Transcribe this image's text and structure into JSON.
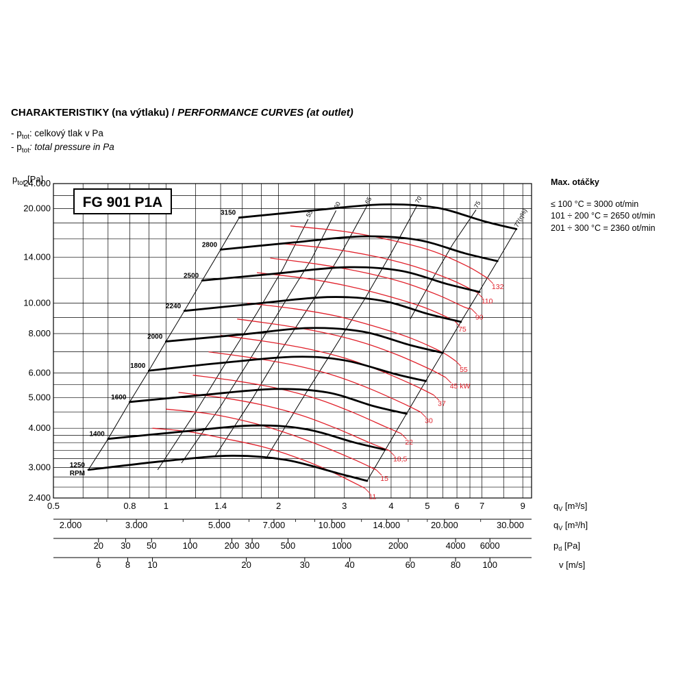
{
  "header": {
    "title_cz": "CHARAKTERISTIKY (na výtlaku) / ",
    "title_en": "PERFORMANCE CURVES (at outlet)",
    "legend1_prefix": "- p",
    "legend1_sub": "tot",
    "legend1_text": ": celkový tlak v Pa",
    "legend2_prefix": "- p",
    "legend2_sub": "tot",
    "legend2_text": ": total pressure in Pa"
  },
  "max_speed": {
    "title": "Max. otáčky",
    "lines": [
      "≤ 100 °C = 3000 ot/min",
      "101 ÷ 200 °C = 2650 ot/min",
      "201 ÷ 300 °C = 2360 ot/min"
    ]
  },
  "colors": {
    "power_curves": "#e0202a",
    "grid": "#000000",
    "curves": "#000000"
  },
  "chart_data": {
    "type": "line",
    "model": "FG 901 P1A",
    "y_scale": "log",
    "x_scale": "log",
    "ylabel_main": "p",
    "ylabel_sub": "tot",
    "ylabel_unit": " [Pa]",
    "ylim": [
      2400,
      24000
    ],
    "xlim": [
      0.5,
      9.5
    ],
    "y_ticks": [
      {
        "v": 2400,
        "label": "2.400"
      },
      {
        "v": 3000,
        "label": "3.000"
      },
      {
        "v": 4000,
        "label": "4.000"
      },
      {
        "v": 5000,
        "label": "5.000"
      },
      {
        "v": 6000,
        "label": "6.000"
      },
      {
        "v": 8000,
        "label": "8.000"
      },
      {
        "v": 10000,
        "label": "10.000"
      },
      {
        "v": 14000,
        "label": "14.000"
      },
      {
        "v": 20000,
        "label": "20.000"
      },
      {
        "v": 24000,
        "label": "24.000"
      }
    ],
    "x_axes": [
      {
        "label_main": "q",
        "label_sub": "V",
        "label_unit": " [m³/s]",
        "factor": 1,
        "ticks": [
          0.5,
          0.8,
          1,
          1.4,
          2,
          3,
          4,
          5,
          6,
          7,
          9
        ],
        "tick_labels": [
          "0.5",
          "0.8",
          "1",
          "1.4",
          "2",
          "3",
          "4",
          "5",
          "6",
          "7",
          "9"
        ]
      },
      {
        "label_main": "q",
        "label_sub": "V",
        "label_unit": " [m³/h]",
        "factor": 3600,
        "ticks": [
          2000,
          3000,
          5000,
          7000,
          10000,
          14000,
          20000,
          30000
        ],
        "tick_labels": [
          "2.000",
          "3.000",
          "5.000",
          "7.000",
          "10.000",
          "14.000",
          "20.000",
          "30.000"
        ]
      },
      {
        "label_main": "p",
        "label_sub": "d",
        "label_unit": " [Pa]",
        "ticks": [
          20,
          30,
          50,
          100,
          200,
          300,
          500,
          1000,
          2000,
          4000,
          6000
        ],
        "tick_labels": [
          "20",
          "30",
          "50",
          "100",
          "200",
          "300",
          "500",
          "1000",
          "2000",
          "4000",
          "6000"
        ]
      },
      {
        "label_main": "v",
        "label_sub": "",
        "label_unit": " [m/s]",
        "ticks": [
          6,
          8,
          10,
          20,
          30,
          40,
          60,
          80,
          100
        ],
        "tick_labels": [
          "6",
          "8",
          "10",
          "20",
          "30",
          "40",
          "60",
          "80",
          "100"
        ]
      }
    ],
    "speed_curves": [
      {
        "rpm": 1250,
        "label": "1250",
        "points": [
          [
            0.62,
            2950
          ],
          [
            1.0,
            3150
          ],
          [
            1.5,
            3270
          ],
          [
            2.1,
            3170
          ],
          [
            2.9,
            2870
          ],
          [
            3.45,
            2720
          ]
        ]
      },
      {
        "rpm": 1400,
        "label": "1400",
        "points": [
          [
            0.7,
            3700
          ],
          [
            1.1,
            3900
          ],
          [
            1.7,
            4080
          ],
          [
            2.35,
            3980
          ],
          [
            3.2,
            3600
          ],
          [
            3.85,
            3420
          ]
        ]
      },
      {
        "rpm": 1600,
        "label": "1600",
        "points": [
          [
            0.8,
            4850
          ],
          [
            1.25,
            5100
          ],
          [
            1.95,
            5330
          ],
          [
            2.7,
            5200
          ],
          [
            3.6,
            4700
          ],
          [
            4.4,
            4450
          ]
        ]
      },
      {
        "rpm": 1800,
        "label": "1800",
        "points": [
          [
            0.9,
            6100
          ],
          [
            1.4,
            6450
          ],
          [
            2.2,
            6750
          ],
          [
            3.0,
            6580
          ],
          [
            4.1,
            5950
          ],
          [
            4.95,
            5650
          ]
        ]
      },
      {
        "rpm": 2000,
        "label": "2000",
        "points": [
          [
            1.0,
            7550
          ],
          [
            1.6,
            7950
          ],
          [
            2.4,
            8330
          ],
          [
            3.35,
            8120
          ],
          [
            4.5,
            7350
          ],
          [
            5.5,
            6950
          ]
        ]
      },
      {
        "rpm": 2240,
        "label": "2240",
        "points": [
          [
            1.12,
            9450
          ],
          [
            1.75,
            9970
          ],
          [
            2.7,
            10450
          ],
          [
            3.75,
            10200
          ],
          [
            5.05,
            9220
          ],
          [
            6.15,
            8720
          ]
        ]
      },
      {
        "rpm": 2500,
        "label": "2500",
        "points": [
          [
            1.25,
            11800
          ],
          [
            1.95,
            12400
          ],
          [
            3.0,
            13000
          ],
          [
            4.2,
            12700
          ],
          [
            5.65,
            11500
          ],
          [
            6.9,
            10850
          ]
        ]
      },
      {
        "rpm": 2800,
        "label": "2800",
        "points": [
          [
            1.4,
            14800
          ],
          [
            2.2,
            15600
          ],
          [
            3.35,
            16300
          ],
          [
            4.7,
            15900
          ],
          [
            6.3,
            14400
          ],
          [
            7.7,
            13600
          ]
        ]
      },
      {
        "rpm": 3150,
        "label": "3150",
        "points": [
          [
            1.57,
            18700
          ],
          [
            2.45,
            19700
          ],
          [
            3.8,
            20600
          ],
          [
            5.3,
            20100
          ],
          [
            7.1,
            18200
          ],
          [
            8.65,
            17200
          ]
        ]
      }
    ],
    "efficiency_lines": [
      {
        "label": "55",
        "points": [
          [
            0.95,
            2950
          ],
          [
            1.2,
            4500
          ],
          [
            1.45,
            6500
          ],
          [
            1.75,
            9300
          ],
          [
            2.05,
            12800
          ],
          [
            2.4,
            18500
          ]
        ]
      },
      {
        "label": "60",
        "points": [
          [
            1.1,
            3100
          ],
          [
            1.4,
            4700
          ],
          [
            1.7,
            6800
          ],
          [
            2.05,
            9800
          ],
          [
            2.45,
            13800
          ],
          [
            2.85,
            19700
          ]
        ]
      },
      {
        "label": "65",
        "points": [
          [
            1.35,
            3250
          ],
          [
            1.7,
            4950
          ],
          [
            2.05,
            7200
          ],
          [
            2.5,
            10400
          ],
          [
            2.95,
            14500
          ],
          [
            3.45,
            20400
          ]
        ]
      },
      {
        "label": "70",
        "points": [
          [
            1.85,
            3200
          ],
          [
            2.3,
            4900
          ],
          [
            2.8,
            7100
          ],
          [
            3.4,
            10300
          ],
          [
            4.0,
            14400
          ],
          [
            4.7,
            20500
          ]
        ]
      },
      {
        "label": "75",
        "points": [
          [
            4.5,
            8900
          ],
          [
            5.15,
            11900
          ],
          [
            5.85,
            15400
          ],
          [
            6.75,
            19800
          ]
        ]
      },
      {
        "label": "77(η%)",
        "points": [
          [
            3.45,
            2720
          ],
          [
            4.95,
            5650
          ],
          [
            6.15,
            8720
          ],
          [
            7.7,
            13600
          ],
          [
            8.65,
            17200
          ]
        ]
      }
    ],
    "power_lines": [
      {
        "label": "11",
        "points": [
          [
            0.92,
            4000
          ],
          [
            1.15,
            3900
          ],
          [
            1.45,
            3700
          ],
          [
            1.8,
            3500
          ],
          [
            2.2,
            3250
          ],
          [
            2.7,
            2950
          ],
          [
            3.4,
            2580
          ]
        ]
      },
      {
        "label": "15",
        "points": [
          [
            1.0,
            4600
          ],
          [
            1.3,
            4450
          ],
          [
            1.65,
            4200
          ],
          [
            2.05,
            3900
          ],
          [
            2.55,
            3550
          ],
          [
            3.15,
            3200
          ],
          [
            3.65,
            2950
          ]
        ]
      },
      {
        "label": "18,5",
        "points": [
          [
            1.08,
            5200
          ],
          [
            1.42,
            5000
          ],
          [
            1.8,
            4750
          ],
          [
            2.3,
            4400
          ],
          [
            2.85,
            4000
          ],
          [
            3.5,
            3600
          ],
          [
            3.95,
            3400
          ]
        ]
      },
      {
        "label": "22",
        "points": [
          [
            1.18,
            5900
          ],
          [
            1.55,
            5650
          ],
          [
            2.0,
            5350
          ],
          [
            2.55,
            4950
          ],
          [
            3.15,
            4500
          ],
          [
            3.85,
            4050
          ],
          [
            4.25,
            3850
          ]
        ]
      },
      {
        "label": "30",
        "points": [
          [
            1.3,
            7000
          ],
          [
            1.7,
            6700
          ],
          [
            2.2,
            6350
          ],
          [
            2.8,
            5900
          ],
          [
            3.5,
            5350
          ],
          [
            4.3,
            4800
          ],
          [
            4.8,
            4500
          ]
        ]
      },
      {
        "label": "37",
        "points": [
          [
            1.4,
            7900
          ],
          [
            1.85,
            7550
          ],
          [
            2.4,
            7150
          ],
          [
            3.05,
            6650
          ],
          [
            3.8,
            6050
          ],
          [
            4.65,
            5450
          ],
          [
            5.2,
            5100
          ]
        ]
      },
      {
        "label": "45 kW",
        "points": [
          [
            1.55,
            8900
          ],
          [
            2.05,
            8500
          ],
          [
            2.65,
            8050
          ],
          [
            3.35,
            7500
          ],
          [
            4.15,
            6850
          ],
          [
            5.1,
            6150
          ],
          [
            5.6,
            5800
          ]
        ]
      },
      {
        "label": "55",
        "points": [
          [
            1.65,
            10000
          ],
          [
            2.2,
            9600
          ],
          [
            2.85,
            9100
          ],
          [
            3.6,
            8450
          ],
          [
            4.5,
            7750
          ],
          [
            5.45,
            7000
          ],
          [
            5.95,
            6550
          ]
        ]
      },
      {
        "label": "75",
        "points": [
          [
            1.75,
            12500
          ],
          [
            2.35,
            12000
          ],
          [
            3.1,
            11300
          ],
          [
            3.95,
            10500
          ],
          [
            4.95,
            9650
          ],
          [
            5.9,
            8800
          ]
        ]
      },
      {
        "label": "90",
        "points": [
          [
            1.9,
            13900
          ],
          [
            2.55,
            13300
          ],
          [
            3.4,
            12500
          ],
          [
            4.35,
            11600
          ],
          [
            5.4,
            10550
          ],
          [
            6.3,
            9700
          ],
          [
            6.55,
            9600
          ]
        ]
      },
      {
        "label": "110",
        "points": [
          [
            2.0,
            15500
          ],
          [
            2.75,
            14900
          ],
          [
            3.7,
            14000
          ],
          [
            4.7,
            13000
          ],
          [
            5.85,
            11800
          ],
          [
            6.8,
            10800
          ]
        ]
      },
      {
        "label": "132",
        "points": [
          [
            2.15,
            17600
          ],
          [
            3.0,
            16900
          ],
          [
            4.05,
            15800
          ],
          [
            5.2,
            14600
          ],
          [
            6.4,
            13100
          ],
          [
            7.25,
            12000
          ]
        ]
      }
    ]
  }
}
